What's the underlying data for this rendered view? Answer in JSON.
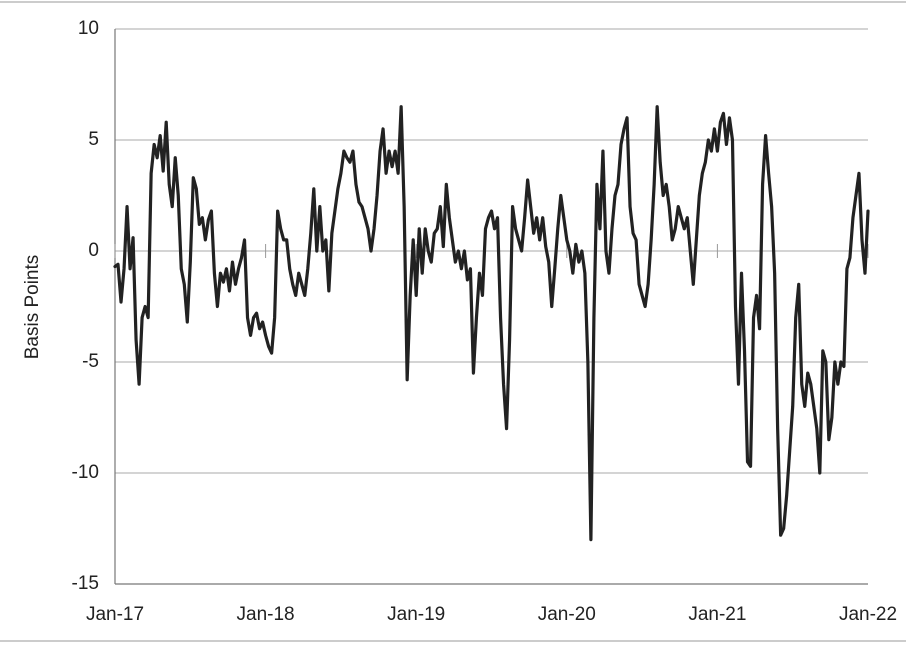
{
  "chart_data": {
    "type": "line",
    "y_label": "Basis Points",
    "color": "#222222",
    "grid": true,
    "xlim": [
      2017,
      2022
    ],
    "xticks": [
      {
        "value": 2017,
        "label": "Jan-17"
      },
      {
        "value": 2018,
        "label": "Jan-18"
      },
      {
        "value": 2019,
        "label": "Jan-19"
      },
      {
        "value": 2020,
        "label": "Jan-20"
      },
      {
        "value": 2021,
        "label": "Jan-21"
      },
      {
        "value": 2022,
        "label": "Jan-22"
      }
    ],
    "ylim": [
      -15,
      10
    ],
    "yticks": [
      -15,
      -10,
      -5,
      0,
      5,
      10
    ],
    "x": [
      2017,
      2017.02,
      2017.04,
      2017.06,
      2017.08,
      2017.1,
      2017.12,
      2017.14,
      2017.16,
      2017.18,
      2017.2,
      2017.22,
      2017.24,
      2017.26,
      2017.28,
      2017.3,
      2017.32,
      2017.34,
      2017.36,
      2017.38,
      2017.4,
      2017.42,
      2017.44,
      2017.46,
      2017.48,
      2017.5,
      2017.52,
      2017.54,
      2017.56,
      2017.58,
      2017.6,
      2017.62,
      2017.64,
      2017.66,
      2017.68,
      2017.7,
      2017.72,
      2017.74,
      2017.76,
      2017.78,
      2017.8,
      2017.82,
      2017.84,
      2017.86,
      2017.88,
      2017.9,
      2017.92,
      2017.94,
      2017.96,
      2017.98,
      2018,
      2018.02,
      2018.04,
      2018.06,
      2018.08,
      2018.1,
      2018.12,
      2018.14,
      2018.16,
      2018.18,
      2018.2,
      2018.22,
      2018.24,
      2018.26,
      2018.28,
      2018.3,
      2018.32,
      2018.34,
      2018.36,
      2018.38,
      2018.4,
      2018.42,
      2018.44,
      2018.46,
      2018.48,
      2018.5,
      2018.52,
      2018.54,
      2018.56,
      2018.58,
      2018.6,
      2018.62,
      2018.64,
      2018.66,
      2018.68,
      2018.7,
      2018.72,
      2018.74,
      2018.76,
      2018.78,
      2018.8,
      2018.82,
      2018.84,
      2018.86,
      2018.88,
      2018.9,
      2018.92,
      2018.94,
      2018.96,
      2018.98,
      2019,
      2019.02,
      2019.04,
      2019.06,
      2019.08,
      2019.1,
      2019.12,
      2019.14,
      2019.16,
      2019.18,
      2019.2,
      2019.22,
      2019.24,
      2019.26,
      2019.28,
      2019.3,
      2019.32,
      2019.34,
      2019.36,
      2019.38,
      2019.4,
      2019.42,
      2019.44,
      2019.46,
      2019.48,
      2019.5,
      2019.52,
      2019.54,
      2019.56,
      2019.58,
      2019.6,
      2019.62,
      2019.64,
      2019.66,
      2019.68,
      2019.7,
      2019.72,
      2019.74,
      2019.76,
      2019.78,
      2019.8,
      2019.82,
      2019.84,
      2019.86,
      2019.88,
      2019.9,
      2019.92,
      2019.94,
      2019.96,
      2019.98,
      2020,
      2020.02,
      2020.04,
      2020.06,
      2020.08,
      2020.1,
      2020.12,
      2020.14,
      2020.16,
      2020.18,
      2020.2,
      2020.22,
      2020.24,
      2020.26,
      2020.28,
      2020.3,
      2020.32,
      2020.34,
      2020.36,
      2020.38,
      2020.4,
      2020.42,
      2020.44,
      2020.46,
      2020.48,
      2020.5,
      2020.52,
      2020.54,
      2020.56,
      2020.58,
      2020.6,
      2020.62,
      2020.64,
      2020.66,
      2020.68,
      2020.7,
      2020.72,
      2020.74,
      2020.76,
      2020.78,
      2020.8,
      2020.82,
      2020.84,
      2020.86,
      2020.88,
      2020.9,
      2020.92,
      2020.94,
      2020.96,
      2020.98,
      2021,
      2021.02,
      2021.04,
      2021.06,
      2021.08,
      2021.1,
      2021.12,
      2021.14,
      2021.16,
      2021.18,
      2021.2,
      2021.22,
      2021.24,
      2021.26,
      2021.28,
      2021.3,
      2021.32,
      2021.34,
      2021.36,
      2021.38,
      2021.4,
      2021.42,
      2021.44,
      2021.46,
      2021.48,
      2021.5,
      2021.52,
      2021.54,
      2021.56,
      2021.58,
      2021.6,
      2021.62,
      2021.64,
      2021.66,
      2021.68,
      2021.7,
      2021.72,
      2021.74,
      2021.76,
      2021.78,
      2021.8,
      2021.82,
      2021.84,
      2021.86,
      2021.88,
      2021.9,
      2021.92,
      2021.94,
      2021.96,
      2021.98,
      2022
    ],
    "values": [
      -0.7,
      -0.6,
      -2.3,
      -0.8,
      2.0,
      -0.8,
      0.6,
      -4.0,
      -6.0,
      -3.0,
      -2.5,
      -3.0,
      3.5,
      4.8,
      4.2,
      5.2,
      3.6,
      5.8,
      3.0,
      2.0,
      4.2,
      2.5,
      -0.8,
      -1.5,
      -3.2,
      -0.5,
      3.3,
      2.8,
      1.2,
      1.5,
      0.5,
      1.4,
      1.8,
      -1.0,
      -2.5,
      -1.0,
      -1.4,
      -0.8,
      -1.8,
      -0.5,
      -1.5,
      -0.8,
      -0.3,
      0.5,
      -3.0,
      -3.8,
      -3.0,
      -2.8,
      -3.5,
      -3.2,
      -3.8,
      -4.3,
      -4.6,
      -3.0,
      1.8,
      1.0,
      0.5,
      0.5,
      -0.8,
      -1.5,
      -2.0,
      -1.0,
      -1.5,
      -2.0,
      -0.8,
      0.8,
      2.8,
      0.0,
      2.0,
      0.0,
      0.5,
      -1.8,
      0.8,
      1.8,
      2.8,
      3.5,
      4.5,
      4.2,
      4.0,
      4.5,
      3.0,
      2.2,
      2.0,
      1.5,
      1.0,
      0.0,
      1.0,
      2.5,
      4.5,
      5.5,
      3.5,
      4.5,
      3.8,
      4.5,
      3.5,
      6.5,
      2.0,
      -5.8,
      -2.0,
      0.5,
      -2.0,
      1.0,
      -1.0,
      1.0,
      0.0,
      -0.5,
      0.8,
      1.0,
      2.0,
      0.2,
      3.0,
      1.5,
      0.5,
      -0.5,
      0.0,
      -0.8,
      0.0,
      -1.3,
      -0.8,
      -5.5,
      -3.0,
      -1.0,
      -2.0,
      1.0,
      1.5,
      1.8,
      1.0,
      1.5,
      -3.0,
      -6.0,
      -8.0,
      -4.0,
      2.0,
      1.0,
      0.5,
      0.0,
      1.5,
      3.2,
      2.0,
      0.8,
      1.5,
      0.5,
      1.5,
      0.2,
      -0.5,
      -2.5,
      -0.8,
      1.0,
      2.5,
      1.5,
      0.5,
      0.0,
      -1.0,
      0.3,
      -0.5,
      0.0,
      -1.0,
      -5.0,
      -13.0,
      -3.0,
      3.0,
      1.0,
      4.5,
      0.0,
      -1.0,
      1.0,
      2.5,
      3.0,
      4.8,
      5.5,
      6.0,
      2.0,
      0.8,
      0.5,
      -1.5,
      -2.0,
      -2.5,
      -1.5,
      0.5,
      3.0,
      6.5,
      4.0,
      2.5,
      3.0,
      2.0,
      0.5,
      1.0,
      2.0,
      1.5,
      1.0,
      1.5,
      0.0,
      -1.5,
      0.5,
      2.5,
      3.5,
      4.0,
      5.0,
      4.5,
      5.5,
      4.5,
      5.8,
      6.2,
      4.8,
      6.0,
      5.0,
      -2.5,
      -6.0,
      -1.0,
      -4.5,
      -9.5,
      -9.7,
      -3.0,
      -2.0,
      -3.5,
      3.0,
      5.2,
      3.5,
      2.0,
      -1.0,
      -8.0,
      -12.8,
      -12.5,
      -11.0,
      -9.0,
      -7.0,
      -3.0,
      -1.5,
      -6.0,
      -7.0,
      -5.5,
      -6.0,
      -7.0,
      -8.0,
      -10.0,
      -4.5,
      -5.0,
      -8.5,
      -7.5,
      -5.0,
      -6.0,
      -5.0,
      -5.2,
      -0.8,
      -0.3,
      1.5,
      2.5,
      3.5,
      0.5,
      -1.0,
      1.8
    ]
  }
}
